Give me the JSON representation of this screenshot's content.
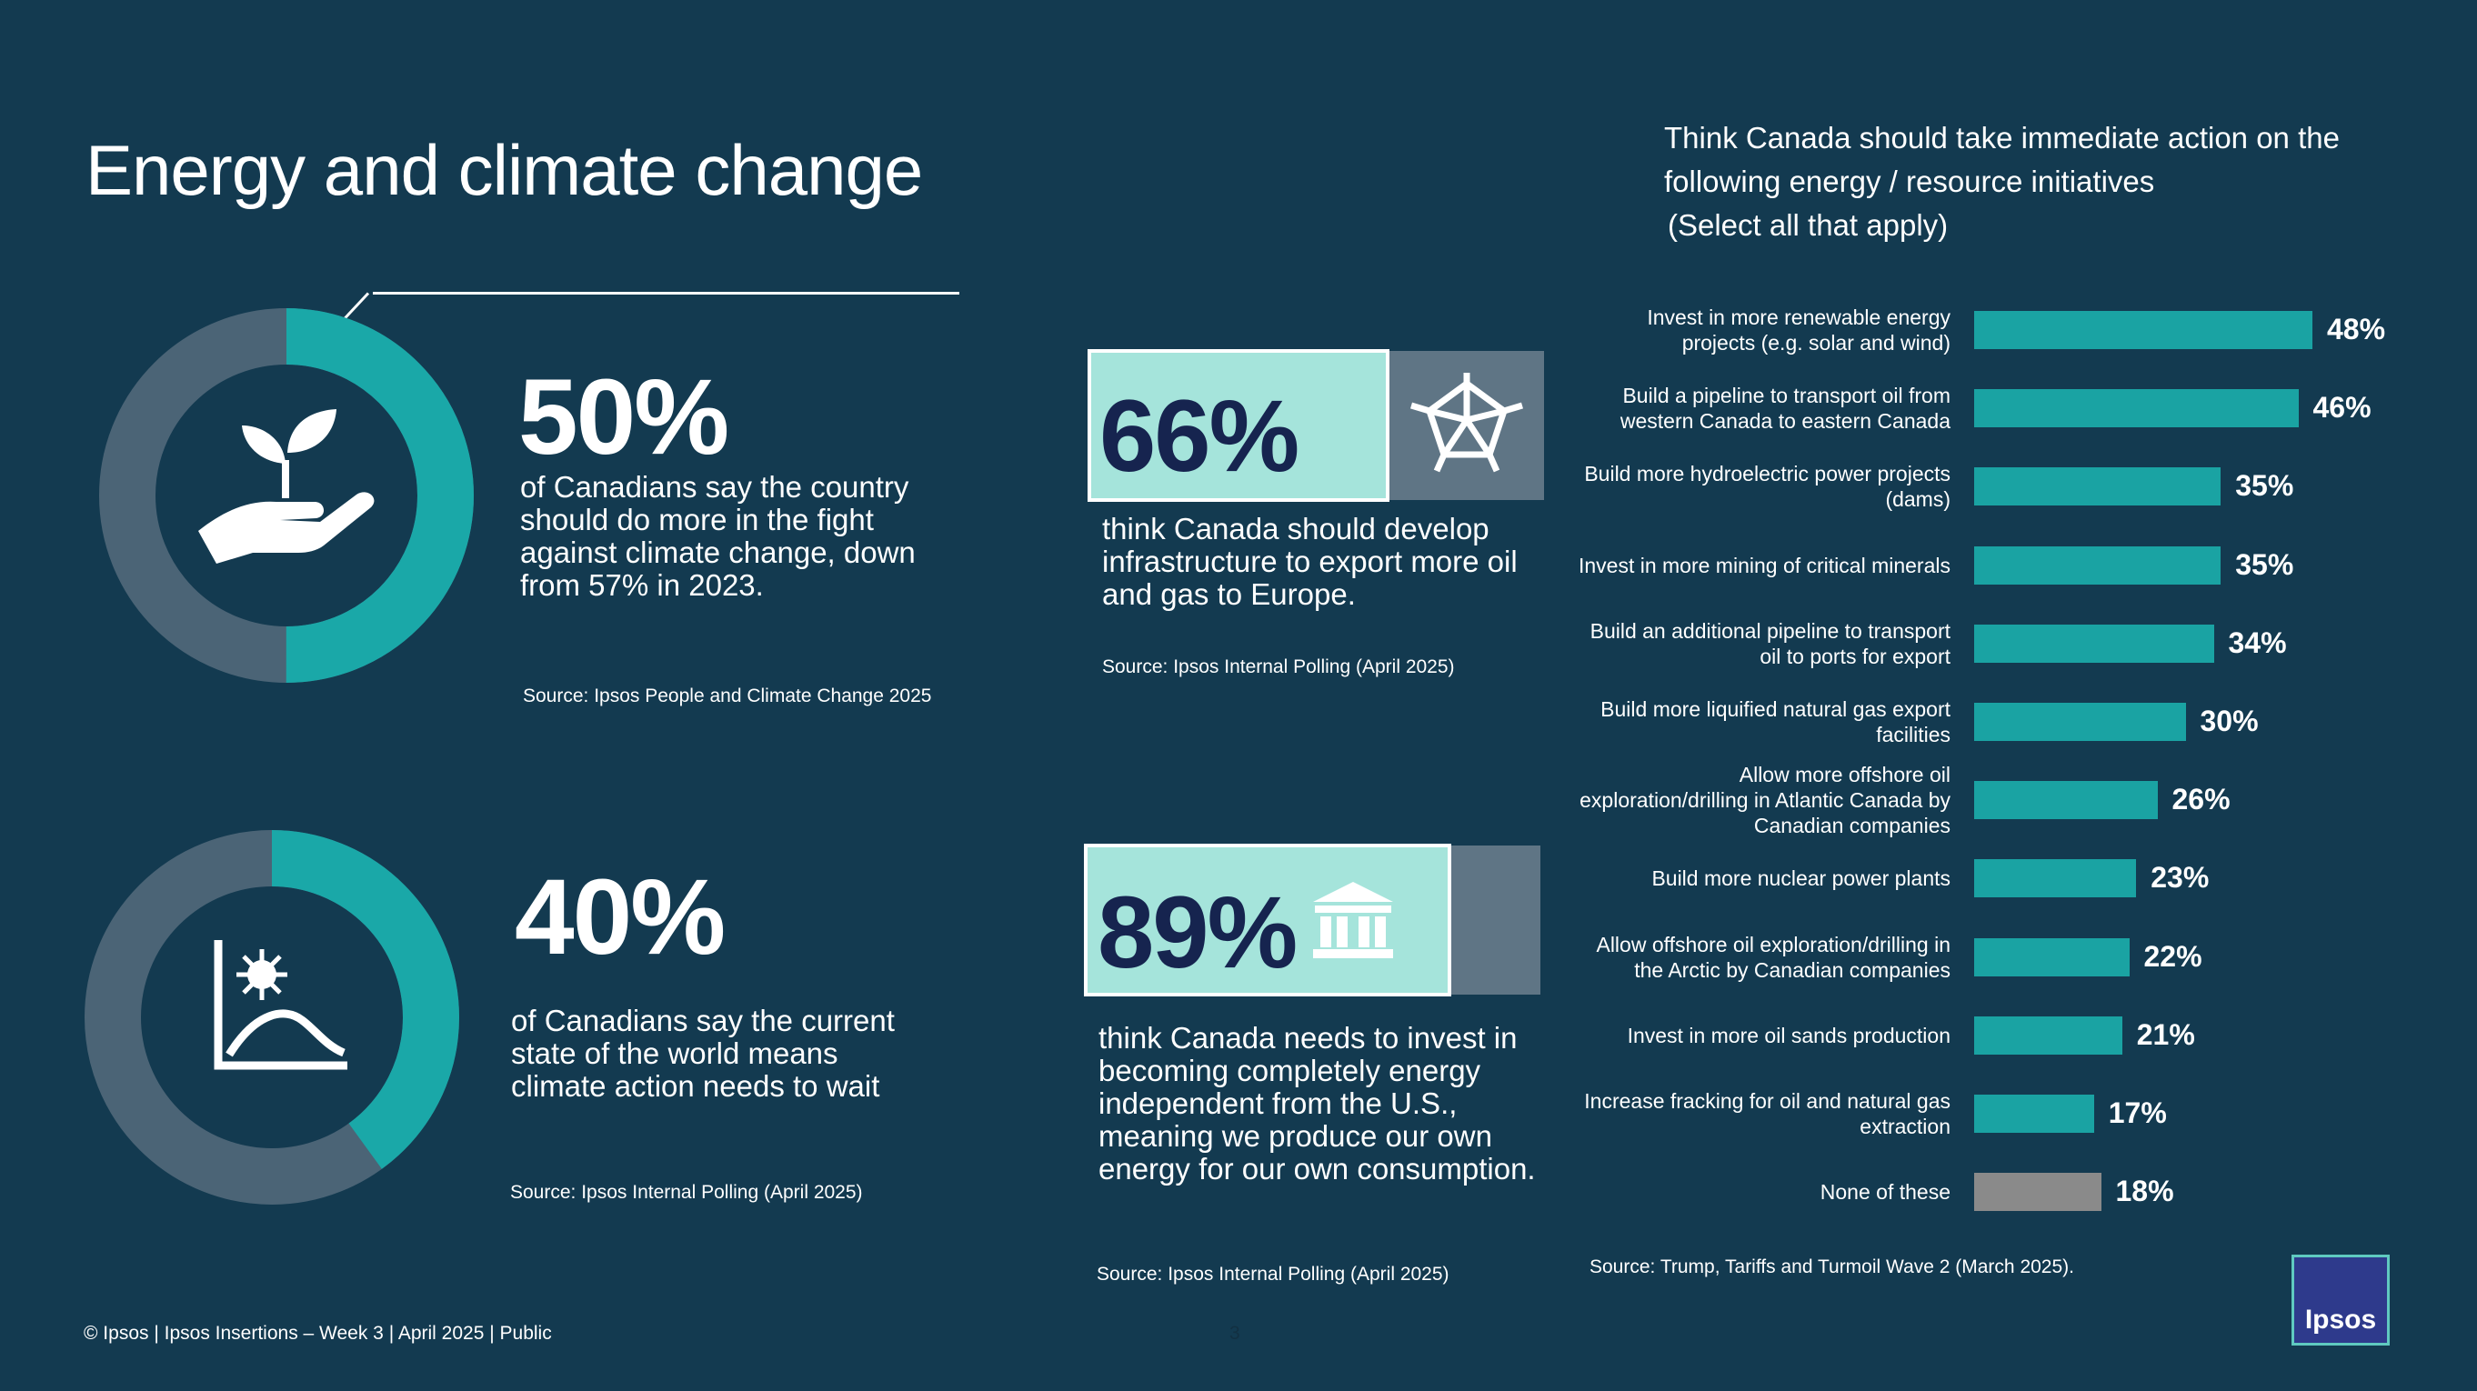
{
  "page": {
    "title": "Energy and climate change",
    "footer": "© Ipsos | Ipsos Insertions – Week 3 | April 2025 | Public",
    "page_number": "3",
    "logo_text": "Ipsos"
  },
  "stat1": {
    "value": "50%",
    "percent": 50,
    "text": "of Canadians say the country should do more in the fight against climate change, down from 57% in 2023.",
    "source": "Source:  Ipsos People and Climate Change 2025",
    "icon": "hand-plant-icon"
  },
  "stat2": {
    "value": "40%",
    "percent": 40,
    "text": "of Canadians say the current state of the world means climate action needs to wait",
    "source": "Source:  Ipsos Internal Polling (April 2025)",
    "icon": "chart-virus-icon"
  },
  "stat3": {
    "value": "66%",
    "percent": 66,
    "text": "think Canada should develop infrastructure to export more oil and gas to Europe.",
    "source": "Source:  Ipsos Internal Polling (April 2025)",
    "icon": "oil-rig-icon"
  },
  "stat4": {
    "value": "89%",
    "percent": 89,
    "text": "think Canada needs to invest in becoming completely energy independent from the U.S., meaning we produce our own energy for our own consumption.",
    "source": "Source:  Ipsos Internal Polling (April 2025)",
    "icon": "government-building-icon"
  },
  "colors": {
    "background": "#133a50",
    "teal": "#1aa8a8",
    "donut_track": "#4b6476",
    "box_fill": "#a5e4db",
    "box_text": "#16244f",
    "bar_teal": "#1aa3a3",
    "bar_gray": "#8a8a8a"
  },
  "chart_data": {
    "type": "bar",
    "orientation": "horizontal",
    "title": "Think Canada should take immediate action on the following energy / resource initiatives\n(Select all that apply)",
    "categories": [
      "Invest in more renewable energy projects (e.g. solar and wind)",
      "Build a pipeline to transport oil from western Canada to eastern Canada",
      "Build more hydroelectric power projects (dams)",
      "Invest in more mining of critical minerals",
      "Build an additional pipeline to transport oil to ports for export",
      "Build more liquified natural gas export facilities",
      "Allow more offshore oil exploration/drilling in Atlantic Canada by Canadian companies",
      "Build more nuclear power plants",
      "Allow offshore oil exploration/drilling in the Arctic by Canadian companies",
      "Invest in more oil sands production",
      "Increase fracking for oil and natural gas extraction",
      "None of these"
    ],
    "values": [
      48,
      46,
      35,
      35,
      34,
      30,
      26,
      23,
      22,
      21,
      17,
      18
    ],
    "value_labels": [
      "48%",
      "46%",
      "35%",
      "35%",
      "34%",
      "30%",
      "26%",
      "23%",
      "22%",
      "21%",
      "17%",
      "18%"
    ],
    "highlight_last": true,
    "source": "Source:  Trump, Tariffs and Turmoil Wave 2 (March 2025)."
  }
}
